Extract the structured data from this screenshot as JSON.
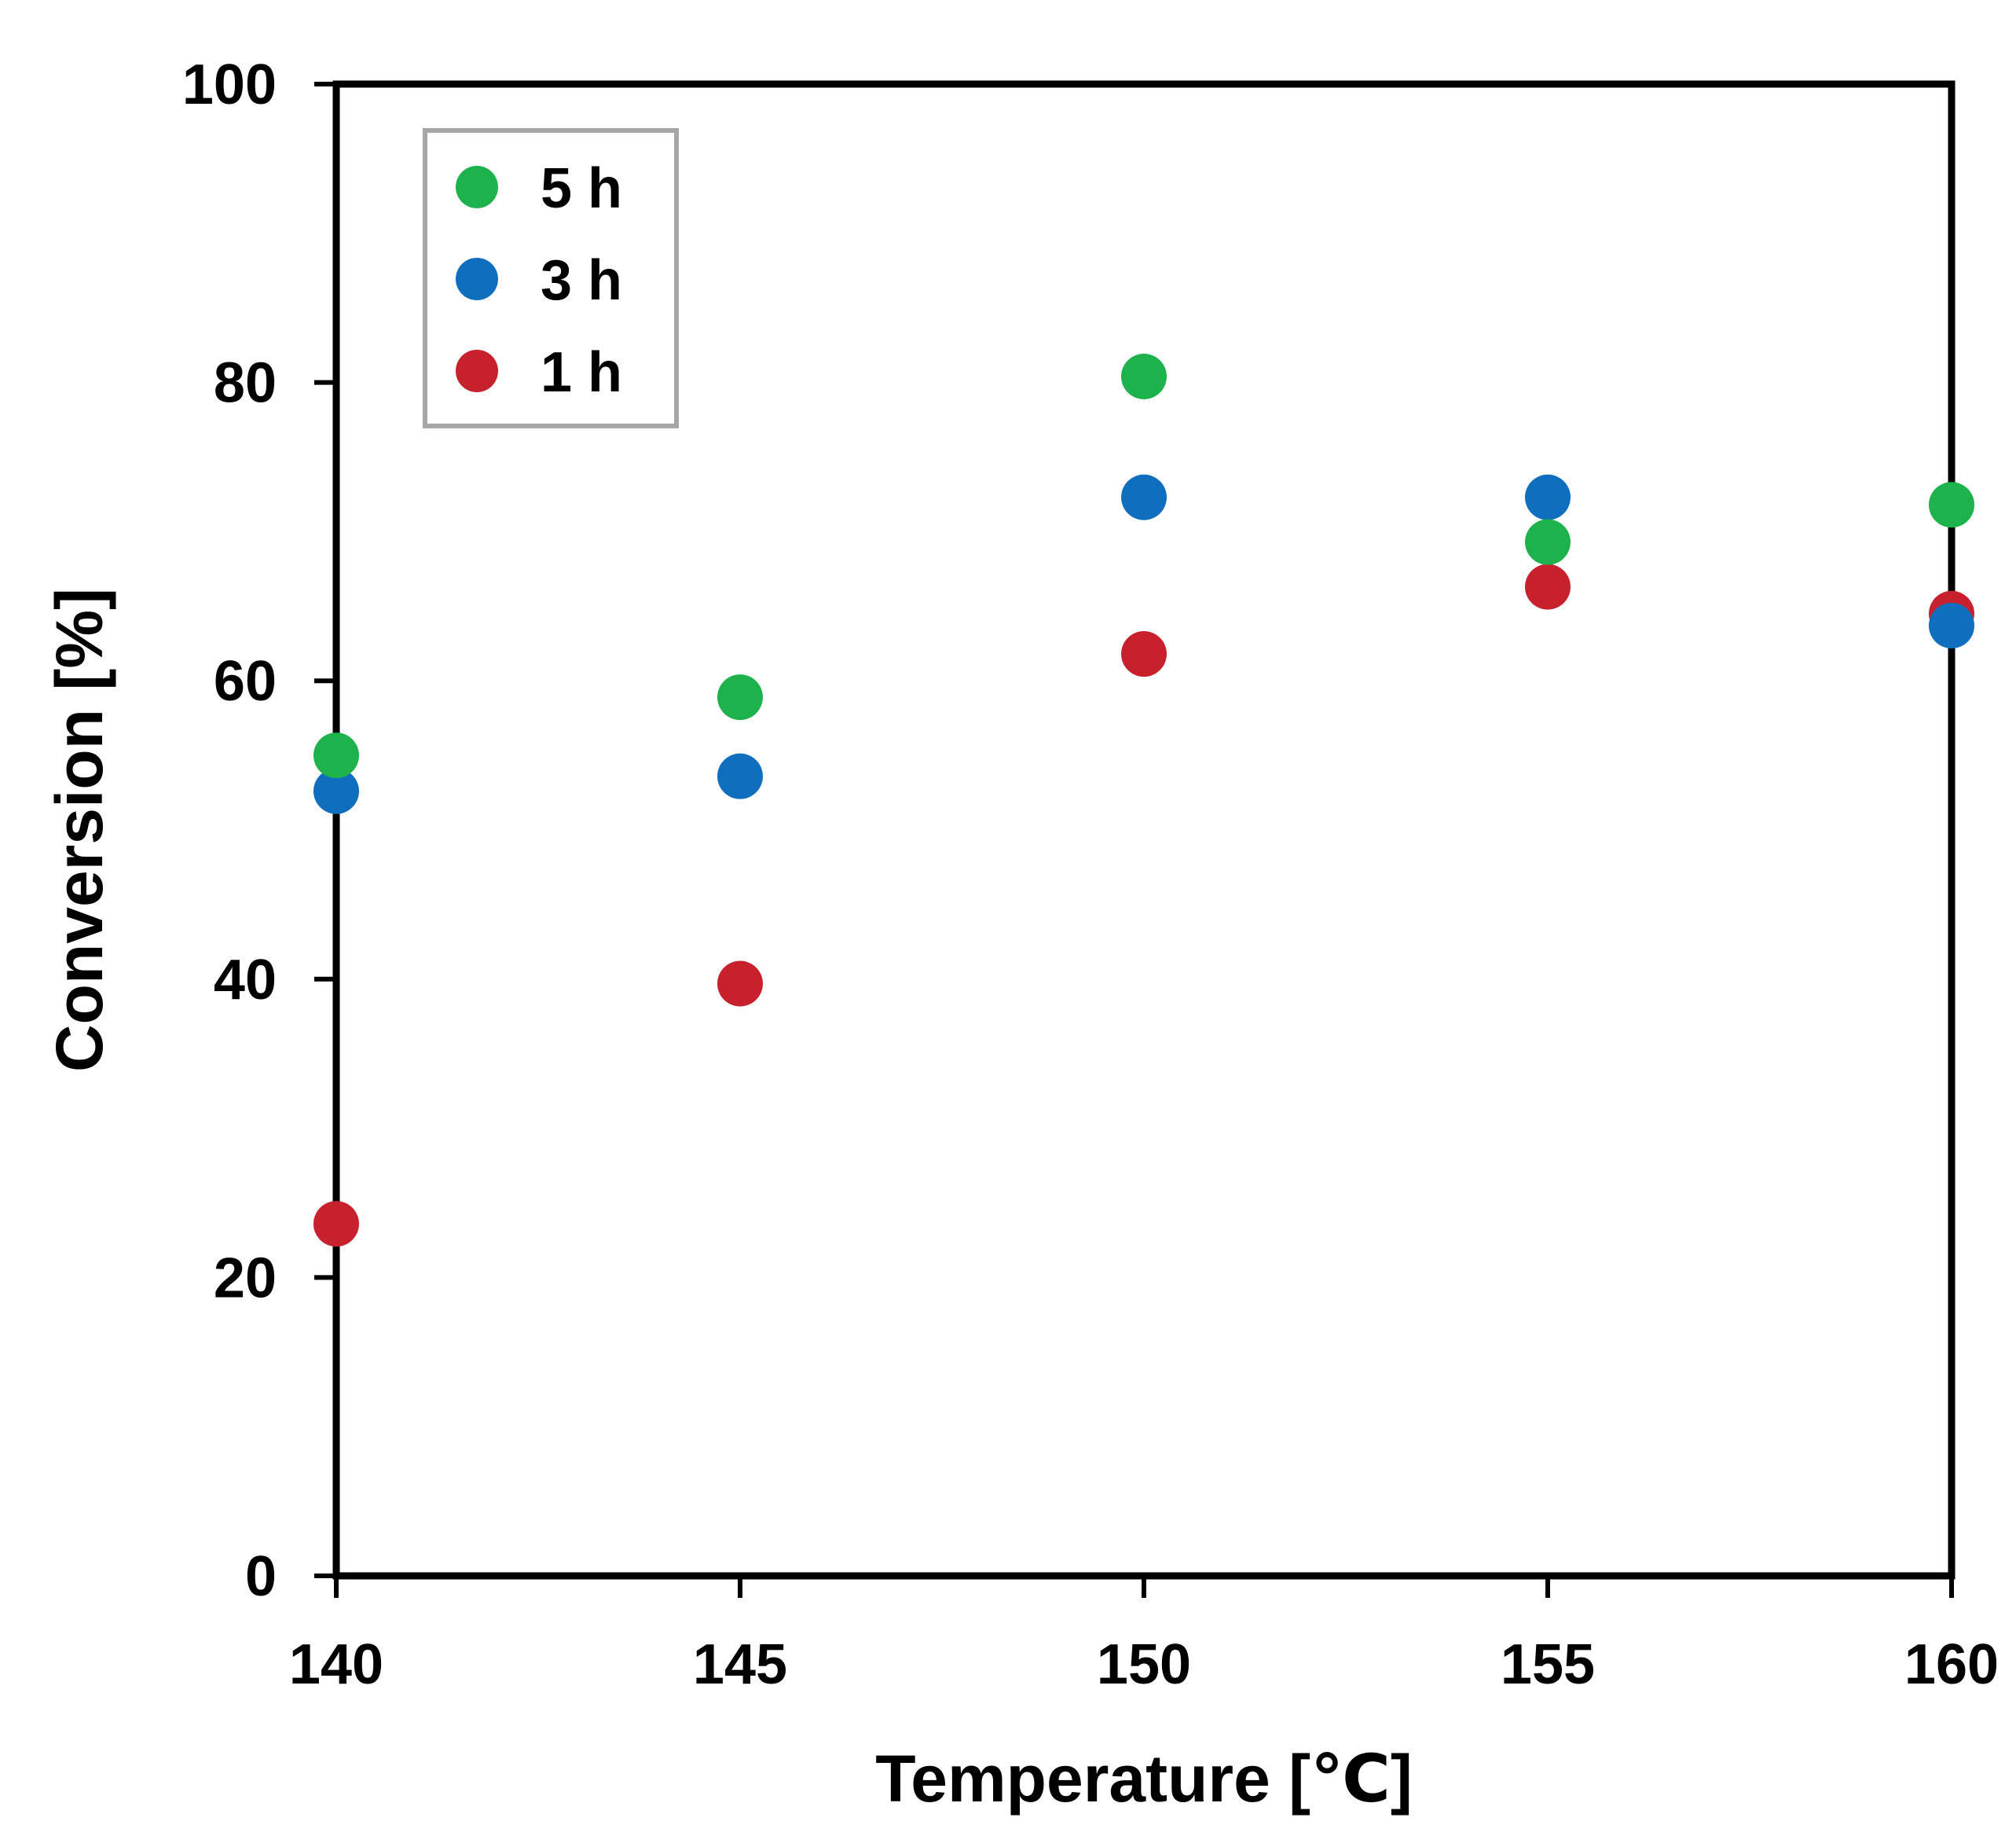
{
  "chart_data": {
    "type": "scatter",
    "xlabel": "Temperature [℃]",
    "ylabel": "Conversion [%]",
    "xlim": [
      140,
      160
    ],
    "ylim": [
      0,
      100
    ],
    "x_ticks": [
      140,
      145,
      150,
      155,
      160
    ],
    "y_ticks": [
      0,
      20,
      40,
      60,
      80,
      100
    ],
    "grid": false,
    "legend_position": "top-left",
    "series": [
      {
        "name": "5 h",
        "color": "#1db24b",
        "x": [
          140,
          145,
          150,
          155,
          160
        ],
        "y": [
          55.0,
          58.9,
          80.4,
          69.3,
          71.8
        ]
      },
      {
        "name": "3 h",
        "color": "#0f6fbe",
        "x": [
          140,
          145,
          150,
          155,
          160
        ],
        "y": [
          52.6,
          53.6,
          72.3,
          72.3,
          63.7
        ]
      },
      {
        "name": "1 h",
        "color": "#c8212e",
        "x": [
          140,
          145,
          150,
          155,
          160
        ],
        "y": [
          23.6,
          39.7,
          61.8,
          66.3,
          64.5
        ]
      }
    ],
    "draw_order": [
      2,
      1,
      0
    ]
  }
}
